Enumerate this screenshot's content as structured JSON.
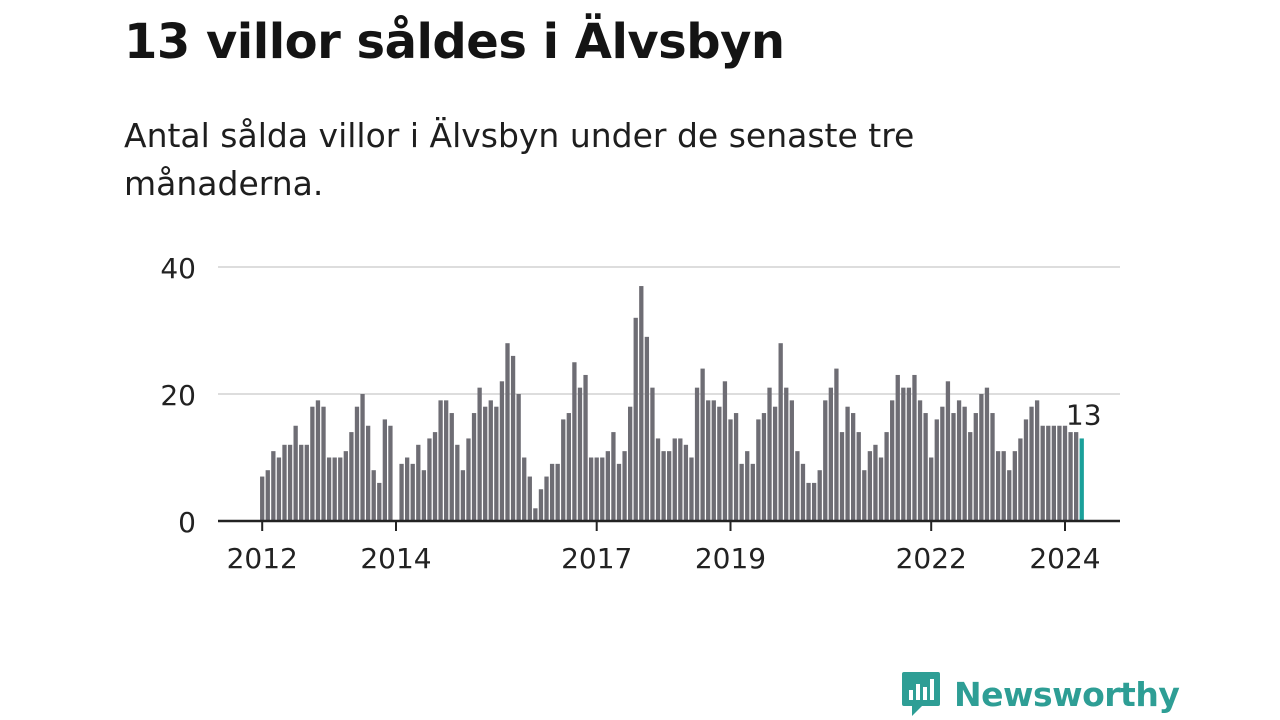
{
  "header": {
    "title": "13 villor såldes i Älvsbyn",
    "subtitle": "Antal sålda villor i Älvsbyn under de senaste tre månaderna."
  },
  "colors": {
    "bar": "#6e6d74",
    "highlight": "#1aa09a",
    "grid": "#dddddd",
    "axis": "#222222",
    "text": "#222222",
    "brand": "#2e9e95"
  },
  "chart_data": {
    "type": "bar",
    "start": "2012-01",
    "x_ticks": [
      "2012",
      "2014",
      "2017",
      "2019",
      "2022",
      "2024"
    ],
    "y_ticks": [
      "0",
      "20",
      "40"
    ],
    "ylim": [
      0,
      40
    ],
    "values": [
      7,
      8,
      11,
      10,
      12,
      12,
      15,
      12,
      12,
      18,
      19,
      18,
      10,
      10,
      10,
      11,
      14,
      18,
      20,
      15,
      8,
      6,
      16,
      15,
      0,
      9,
      10,
      9,
      12,
      8,
      13,
      14,
      19,
      19,
      17,
      12,
      8,
      13,
      17,
      21,
      18,
      19,
      18,
      22,
      28,
      26,
      20,
      10,
      7,
      2,
      5,
      7,
      9,
      9,
      16,
      17,
      25,
      21,
      23,
      10,
      10,
      10,
      11,
      14,
      9,
      11,
      18,
      32,
      37,
      29,
      21,
      13,
      11,
      11,
      13,
      13,
      12,
      10,
      21,
      24,
      19,
      19,
      18,
      22,
      16,
      17,
      9,
      11,
      9,
      16,
      17,
      21,
      18,
      28,
      21,
      19,
      11,
      9,
      6,
      6,
      8,
      19,
      21,
      24,
      14,
      18,
      17,
      14,
      8,
      11,
      12,
      10,
      14,
      19,
      23,
      21,
      21,
      23,
      19,
      17,
      10,
      16,
      18,
      22,
      17,
      19,
      18,
      14,
      17,
      20,
      21,
      17,
      11,
      11,
      8,
      11,
      13,
      16,
      18,
      19,
      15,
      15,
      15,
      15,
      15,
      14,
      14,
      13
    ],
    "highlight_index": 147,
    "highlight_label": "13"
  },
  "brand": {
    "name": "Newsworthy",
    "icon": "newsworthy-logo-icon"
  }
}
